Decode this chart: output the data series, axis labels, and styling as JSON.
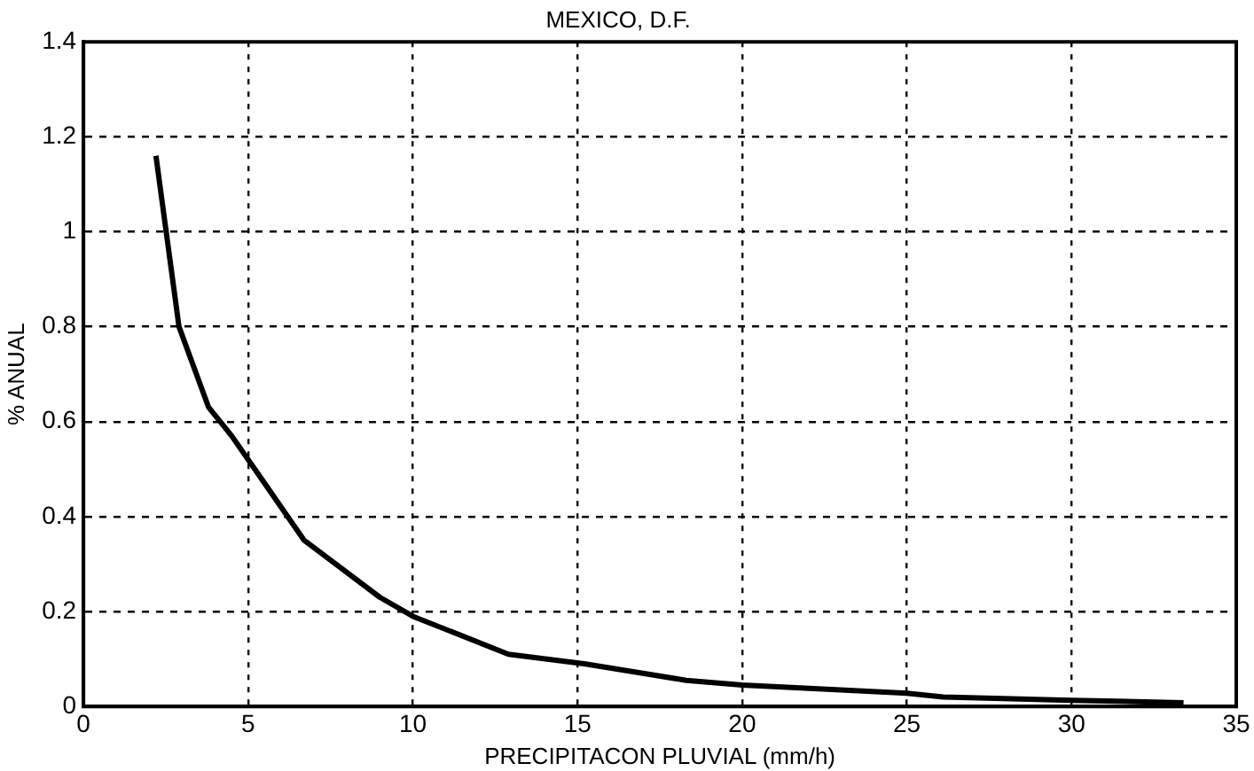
{
  "chart_data": {
    "type": "line",
    "title": "MEXICO, D.F.",
    "xlabel": "PRECIPITACON PLUVIAL (mm/h)",
    "ylabel": "% ANUAL",
    "series": [
      {
        "color": "#000000",
        "x": [
          2.2,
          2.9,
          3.8,
          4.5,
          5.4,
          6.7,
          9,
          10,
          12.9,
          15.2,
          18.3,
          20,
          25,
          26.1,
          30,
          33.4
        ],
        "values": [
          1.16,
          0.8,
          0.63,
          0.57,
          0.48,
          0.35,
          0.23,
          0.19,
          0.11,
          0.09,
          0.055,
          0.045,
          0.028,
          0.02,
          0.013,
          0.008
        ]
      }
    ],
    "xlim": [
      0,
      35
    ],
    "xticks": [
      0,
      5,
      10,
      15,
      20,
      25,
      30,
      35
    ],
    "ylim": [
      0,
      1.4
    ],
    "yticks": [
      0,
      0.2,
      0.4,
      0.6,
      0.8,
      1,
      1.2,
      1.4
    ],
    "grid": true,
    "legend": false,
    "marker": "none"
  }
}
